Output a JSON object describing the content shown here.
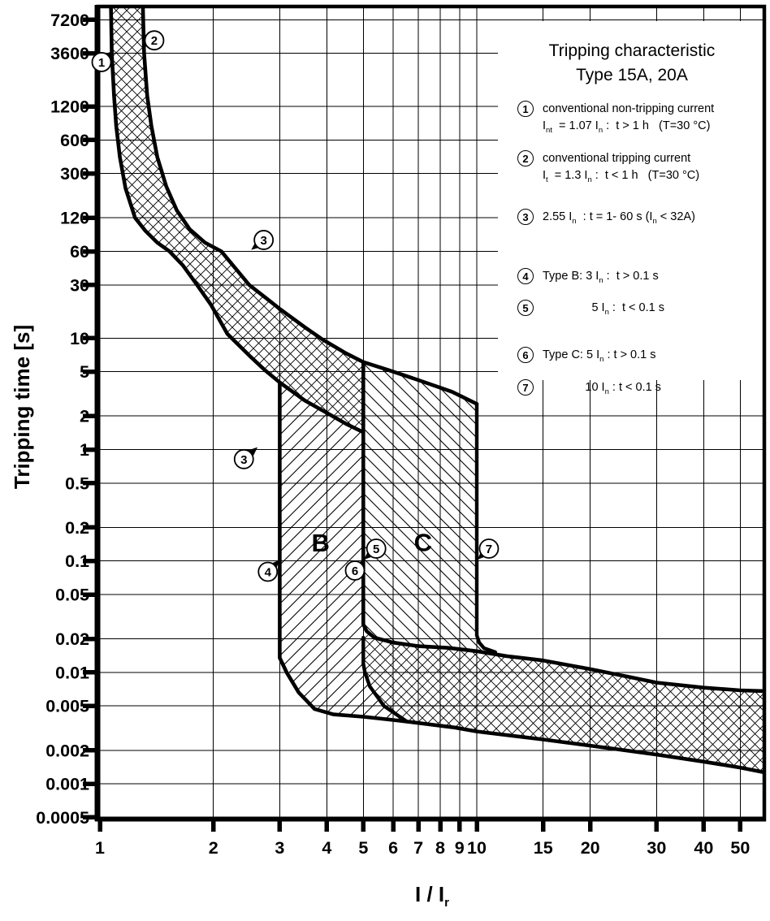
{
  "chart_data": {
    "type": "area",
    "title": "Tripping characteristic",
    "subtitle": "Type 15A, 20A",
    "xlabel": "I / I_{r}",
    "ylabel": "Tripping time [s]",
    "grid": true,
    "colors": {
      "ink": "#000000",
      "background": "#ffffff"
    },
    "axes": {
      "x": {
        "scale": "log",
        "ticks": [
          1,
          2,
          3,
          4,
          5,
          6,
          7,
          8,
          9,
          10,
          15,
          20,
          30,
          40,
          50
        ],
        "range": [
          1,
          57.8
        ]
      },
      "y": {
        "scale": "log",
        "ticks": [
          7200,
          3600,
          1200,
          600,
          300,
          120,
          60,
          30,
          10,
          5,
          2,
          1,
          0.5,
          0.2,
          0.1,
          0.05,
          0.02,
          0.01,
          0.005,
          0.002,
          0.001,
          0.0005
        ],
        "range": [
          0.000478,
          9468
        ]
      }
    },
    "series": [
      {
        "name": "thermal-lower-limit-1.07In",
        "width": 4.6,
        "points": [
          [
            1.07,
            9468
          ],
          [
            1.075,
            3600
          ],
          [
            1.09,
            1500
          ],
          [
            1.105,
            800
          ],
          [
            1.13,
            420
          ],
          [
            1.17,
            220
          ],
          [
            1.24,
            120
          ],
          [
            1.32,
            92
          ],
          [
            1.42,
            72
          ],
          [
            1.53,
            60
          ],
          [
            1.66,
            45
          ],
          [
            1.81,
            30
          ],
          [
            1.97,
            20
          ],
          [
            2.18,
            10.9
          ],
          [
            2.5,
            6.9
          ],
          [
            2.75,
            5.1
          ],
          [
            3.0,
            4.0
          ],
          [
            3.5,
            2.75
          ],
          [
            4.0,
            2.13
          ],
          [
            4.5,
            1.7
          ],
          [
            5.0,
            1.43
          ]
        ]
      },
      {
        "name": "thermal-upper-limit-1.3In",
        "width": 4.6,
        "points": [
          [
            1.3,
            9468
          ],
          [
            1.31,
            3600
          ],
          [
            1.335,
            1500
          ],
          [
            1.37,
            800
          ],
          [
            1.42,
            420
          ],
          [
            1.5,
            230
          ],
          [
            1.6,
            140
          ],
          [
            1.73,
            95
          ],
          [
            1.9,
            72
          ],
          [
            2.1,
            60
          ],
          [
            2.49,
            30
          ],
          [
            2.8,
            22
          ],
          [
            3.0,
            18.3
          ],
          [
            3.5,
            12.5
          ],
          [
            3.9,
            9.7
          ],
          [
            4.5,
            7.3
          ],
          [
            5.0,
            6.1
          ],
          [
            5.8,
            5.2
          ],
          [
            7.0,
            4.2
          ],
          [
            8.6,
            3.3
          ],
          [
            10.0,
            2.57
          ]
        ]
      },
      {
        "name": "type-b-lower-limit-3In-and-band-bottom",
        "width": 4.6,
        "points": [
          [
            3,
            4.0
          ],
          [
            3,
            0.0135
          ],
          [
            3.13,
            0.01
          ],
          [
            3.37,
            0.0066
          ],
          [
            3.71,
            0.0047
          ],
          [
            4.16,
            0.0042
          ],
          [
            5.0,
            0.004
          ],
          [
            6.17,
            0.0037
          ],
          [
            8.75,
            0.0032
          ],
          [
            10,
            0.00295
          ],
          [
            15,
            0.0025
          ],
          [
            20,
            0.0022
          ],
          [
            30,
            0.00183
          ],
          [
            40,
            0.00158
          ],
          [
            50,
            0.0014
          ],
          [
            57.8,
            0.00127
          ]
        ]
      },
      {
        "name": "type-b-c-boundary-5In-and-band-top",
        "width": 4.6,
        "points": [
          [
            5,
            6.1
          ],
          [
            5,
            0.027
          ],
          [
            5.1,
            0.0235
          ],
          [
            5.35,
            0.0205
          ],
          [
            6,
            0.0185
          ],
          [
            7,
            0.0172
          ],
          [
            8.4,
            0.0166
          ],
          [
            10,
            0.0155
          ],
          [
            12,
            0.014
          ],
          [
            15,
            0.0128
          ],
          [
            20,
            0.0107
          ],
          [
            25,
            0.0092
          ],
          [
            30,
            0.0081
          ],
          [
            40,
            0.0073
          ],
          [
            50,
            0.0069
          ],
          [
            57.8,
            0.0068
          ]
        ]
      },
      {
        "name": "type-c-lower-bend-5In",
        "width": 4.4,
        "points": [
          [
            5,
            0.0205
          ],
          [
            5,
            0.012
          ],
          [
            5.05,
            0.01
          ],
          [
            5.2,
            0.0075
          ],
          [
            5.67,
            0.005
          ],
          [
            6.5,
            0.00365
          ]
        ]
      },
      {
        "name": "type-c-upper-limit-10In",
        "width": 4.4,
        "points": [
          [
            10,
            2.57
          ],
          [
            10,
            0.0215
          ],
          [
            10.15,
            0.0185
          ],
          [
            10.45,
            0.0165
          ],
          [
            11.2,
            0.0152
          ]
        ]
      }
    ],
    "regions": [
      {
        "name": "thermal-tripping-band",
        "hatch": "cross",
        "polygon": [
          [
            1.07,
            9468
          ],
          [
            1.075,
            3600
          ],
          [
            1.09,
            1500
          ],
          [
            1.105,
            800
          ],
          [
            1.13,
            420
          ],
          [
            1.17,
            220
          ],
          [
            1.24,
            120
          ],
          [
            1.32,
            92
          ],
          [
            1.42,
            72
          ],
          [
            1.53,
            60
          ],
          [
            1.66,
            45
          ],
          [
            1.81,
            30
          ],
          [
            1.97,
            20
          ],
          [
            2.18,
            10.9
          ],
          [
            2.5,
            6.9
          ],
          [
            2.75,
            5.1
          ],
          [
            3.0,
            4.0
          ],
          [
            3.5,
            2.75
          ],
          [
            4.0,
            2.13
          ],
          [
            4.5,
            1.7
          ],
          [
            5.0,
            1.43
          ],
          [
            5.0,
            6.1
          ],
          [
            3.9,
            9.7
          ],
          [
            3.5,
            12.5
          ],
          [
            3.0,
            18.3
          ],
          [
            2.8,
            22
          ],
          [
            2.49,
            30
          ],
          [
            2.1,
            60
          ],
          [
            1.9,
            72
          ],
          [
            1.73,
            95
          ],
          [
            1.6,
            140
          ],
          [
            1.5,
            230
          ],
          [
            1.42,
            420
          ],
          [
            1.37,
            800
          ],
          [
            1.335,
            1500
          ],
          [
            1.31,
            3600
          ],
          [
            1.3,
            9468
          ]
        ]
      },
      {
        "name": "type-b-region",
        "hatch": "diag-up",
        "polygon": [
          [
            3,
            4.0
          ],
          [
            3.5,
            2.75
          ],
          [
            4.0,
            2.13
          ],
          [
            4.5,
            1.7
          ],
          [
            5.0,
            1.43
          ],
          [
            5,
            0.012
          ],
          [
            5.05,
            0.01
          ],
          [
            5.2,
            0.0075
          ],
          [
            5.67,
            0.005
          ],
          [
            6.5,
            0.00365
          ],
          [
            6.17,
            0.0037
          ],
          [
            5.0,
            0.004
          ],
          [
            4.16,
            0.0042
          ],
          [
            3.71,
            0.0047
          ],
          [
            3.37,
            0.0066
          ],
          [
            3.13,
            0.01
          ],
          [
            3,
            0.0135
          ]
        ]
      },
      {
        "name": "type-c-region",
        "hatch": "diag-down",
        "polygon": [
          [
            5,
            6.1
          ],
          [
            5.8,
            5.2
          ],
          [
            7,
            4.2
          ],
          [
            8.6,
            3.3
          ],
          [
            10,
            2.57
          ],
          [
            10,
            0.0215
          ],
          [
            10.15,
            0.0185
          ],
          [
            10.45,
            0.0165
          ],
          [
            11.2,
            0.0152
          ],
          [
            10,
            0.0155
          ],
          [
            8.4,
            0.0166
          ],
          [
            7,
            0.0172
          ],
          [
            6,
            0.0185
          ],
          [
            5.35,
            0.0205
          ],
          [
            5.1,
            0.0235
          ],
          [
            5,
            0.027
          ]
        ]
      },
      {
        "name": "instantaneous-tripping-band",
        "hatch": "cross",
        "polygon": [
          [
            5,
            0.027
          ],
          [
            5.1,
            0.0235
          ],
          [
            5.35,
            0.0205
          ],
          [
            6,
            0.0185
          ],
          [
            7,
            0.0172
          ],
          [
            8.4,
            0.0166
          ],
          [
            10,
            0.0155
          ],
          [
            12,
            0.014
          ],
          [
            15,
            0.0128
          ],
          [
            20,
            0.0107
          ],
          [
            25,
            0.0092
          ],
          [
            30,
            0.0081
          ],
          [
            40,
            0.0073
          ],
          [
            50,
            0.0069
          ],
          [
            57.8,
            0.0068
          ],
          [
            57.8,
            0.00127
          ],
          [
            50,
            0.0014
          ],
          [
            40,
            0.00158
          ],
          [
            30,
            0.00183
          ],
          [
            20,
            0.0022
          ],
          [
            15,
            0.0025
          ],
          [
            10,
            0.00295
          ],
          [
            8.75,
            0.0032
          ],
          [
            6.17,
            0.0037
          ],
          [
            6.5,
            0.00365
          ],
          [
            5.67,
            0.005
          ],
          [
            5.2,
            0.0075
          ],
          [
            5.05,
            0.01
          ],
          [
            5,
            0.012
          ]
        ]
      }
    ],
    "region_labels": [
      {
        "text": "B",
        "x": 3.85,
        "t": 0.146
      },
      {
        "text": "C",
        "x": 7.2,
        "t": 0.147
      }
    ],
    "markers": [
      {
        "label": "1",
        "x": 1.01,
        "t": 3000,
        "tip": [
          1.09,
          3800
        ]
      },
      {
        "label": "2",
        "x": 1.394,
        "t": 4700,
        "tip": [
          1.295,
          4100
        ]
      },
      {
        "label": "3",
        "x": 2.72,
        "t": 76,
        "tip": [
          2.52,
          62
        ]
      },
      {
        "label": "3",
        "x": 2.41,
        "t": 0.82,
        "tip": [
          2.62,
          1.05
        ]
      },
      {
        "label": "4",
        "x": 2.79,
        "t": 0.08,
        "tip": [
          3.0,
          0.102
        ]
      },
      {
        "label": "5",
        "x": 5.41,
        "t": 0.129,
        "tip": [
          5.02,
          0.103
        ]
      },
      {
        "label": "6",
        "x": 4.75,
        "t": 0.082,
        "tip": [
          5.02,
          0.101
        ]
      },
      {
        "label": "7",
        "x": 10.77,
        "t": 0.129,
        "tip": [
          10.04,
          0.103
        ]
      }
    ],
    "legend": {
      "items": [
        {
          "num": "1",
          "lines": [
            "conventional non-tripping current",
            "I_{nt}  = 1.07 I_{n} :  t > 1 h   (T=30 °C)"
          ]
        },
        {
          "num": "2",
          "lines": [
            "conventional tripping current",
            "I_{t}  = 1.3 I_{n} :  t < 1 h   (T=30 °C)"
          ]
        },
        {
          "num": "3",
          "lines": [
            "2.55 I_{n}  : t = 1- 60 s (I_{n} < 32A)"
          ]
        },
        {
          "num": "4",
          "lines": [
            "Type B: 3 I_{n} :  t > 0.1 s"
          ]
        },
        {
          "num": "5",
          "lines": [
            "               5 I_{n} :  t < 0.1 s"
          ]
        },
        {
          "num": "6",
          "lines": [
            "Type C: 5 I_{n} : t > 0.1 s"
          ]
        },
        {
          "num": "7",
          "lines": [
            "             10 I_{n} : t < 0.1 s"
          ]
        }
      ]
    }
  }
}
